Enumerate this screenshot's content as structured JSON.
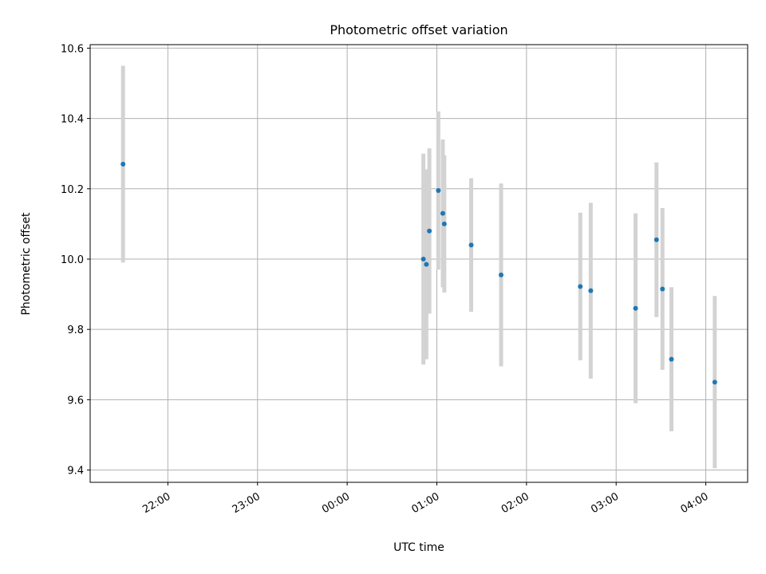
{
  "chart_data": {
    "type": "scatter",
    "title": "Photometric offset variation",
    "xlabel": "UTC time",
    "ylabel": "Photometric offset",
    "x_axis": {
      "type": "time",
      "start": "2000-01-01T21:08",
      "end": "2000-01-02T04:28",
      "ticks": [
        {
          "time": "2000-01-01T22:00",
          "label": "22:00"
        },
        {
          "time": "2000-01-01T23:00",
          "label": "23:00"
        },
        {
          "time": "2000-01-02T00:00",
          "label": "00:00"
        },
        {
          "time": "2000-01-02T01:00",
          "label": "01:00"
        },
        {
          "time": "2000-01-02T02:00",
          "label": "02:00"
        },
        {
          "time": "2000-01-02T03:00",
          "label": "03:00"
        },
        {
          "time": "2000-01-02T04:00",
          "label": "04:00"
        }
      ]
    },
    "ylim": [
      9.365,
      10.61
    ],
    "yticks": [
      9.4,
      9.6,
      9.8,
      10.0,
      10.2,
      10.4,
      10.6
    ],
    "ytick_labels": [
      "9.4",
      "9.6",
      "9.8",
      "10.0",
      "10.2",
      "10.4",
      "10.6"
    ],
    "grid": true,
    "colors": {
      "marker": "#1f77b4",
      "errorbar": "#d3d3d3",
      "grid": "#b0b0b0"
    },
    "series": [
      {
        "points": [
          {
            "time": "2000-01-01T21:30",
            "y": 10.27,
            "err": 0.28
          },
          {
            "time": "2000-01-02T00:51",
            "y": 10.0,
            "err": 0.3
          },
          {
            "time": "2000-01-02T00:53",
            "y": 9.985,
            "err": 0.27
          },
          {
            "time": "2000-01-02T00:55",
            "y": 10.08,
            "err": 0.235
          },
          {
            "time": "2000-01-02T01:01",
            "y": 10.195,
            "err": 0.225
          },
          {
            "time": "2000-01-02T01:04",
            "y": 10.13,
            "err": 0.21
          },
          {
            "time": "2000-01-02T01:05",
            "y": 10.1,
            "err": 0.195
          },
          {
            "time": "2000-01-02T01:23",
            "y": 10.04,
            "err": 0.19
          },
          {
            "time": "2000-01-02T01:43",
            "y": 9.955,
            "err": 0.26
          },
          {
            "time": "2000-01-02T02:36",
            "y": 9.922,
            "err": 0.21
          },
          {
            "time": "2000-01-02T02:43",
            "y": 9.91,
            "err": 0.25
          },
          {
            "time": "2000-01-02T03:13",
            "y": 9.86,
            "err": 0.27
          },
          {
            "time": "2000-01-02T03:27",
            "y": 10.055,
            "err": 0.22
          },
          {
            "time": "2000-01-02T03:31",
            "y": 9.915,
            "err": 0.23
          },
          {
            "time": "2000-01-02T03:37",
            "y": 9.715,
            "err": 0.205
          },
          {
            "time": "2000-01-02T04:06",
            "y": 9.65,
            "err": 0.245
          }
        ]
      }
    ]
  }
}
